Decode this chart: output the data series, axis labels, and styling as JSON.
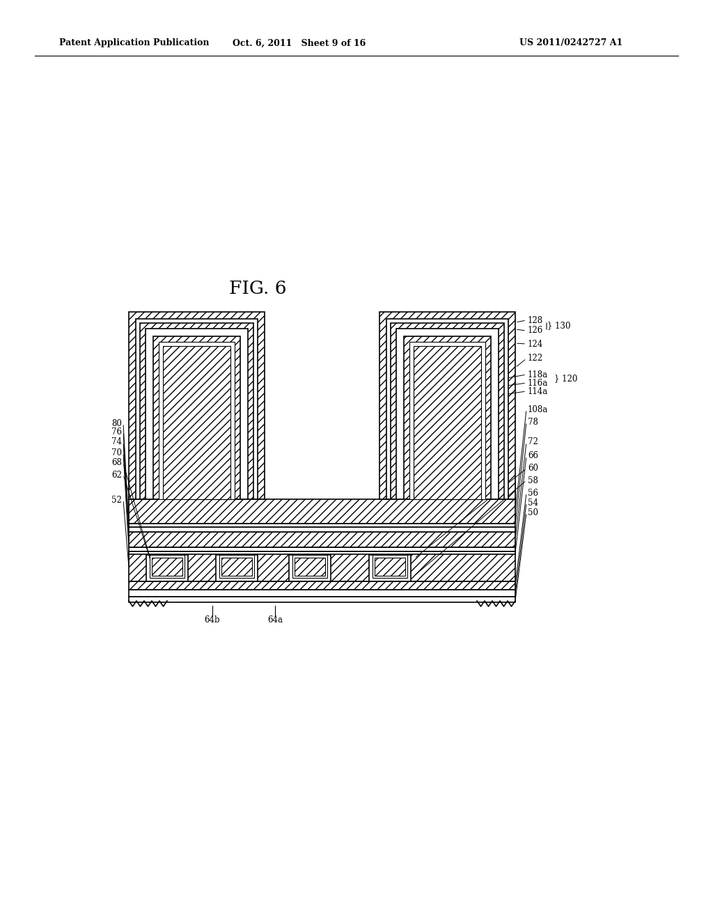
{
  "title": "FIG. 6",
  "header_left": "Patent Application Publication",
  "header_mid": "Oct. 6, 2011   Sheet 9 of 16",
  "header_right": "US 2011/0242727 A1",
  "bg_color": "#ffffff"
}
